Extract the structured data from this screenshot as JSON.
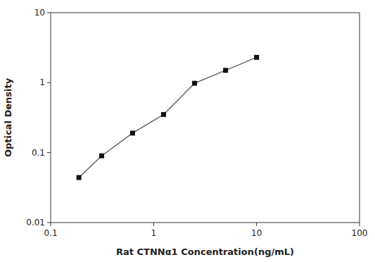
{
  "chart_data": {
    "type": "line",
    "x": [
      0.188,
      0.313,
      0.625,
      1.25,
      2.5,
      5.0,
      10.0
    ],
    "values": [
      0.044,
      0.09,
      0.19,
      0.35,
      0.98,
      1.5,
      2.3
    ],
    "xlabel": "Rat CTNNα1 Concentration(ng/mL)",
    "ylabel": "Optical Density",
    "xlim": [
      0.1,
      100
    ],
    "ylim": [
      0.01,
      10
    ],
    "xticks": [
      0.1,
      1,
      10,
      100
    ],
    "yticks": [
      0.01,
      0.1,
      1,
      10
    ],
    "log": true,
    "grid": false,
    "color": "#666666",
    "marker": "square"
  }
}
